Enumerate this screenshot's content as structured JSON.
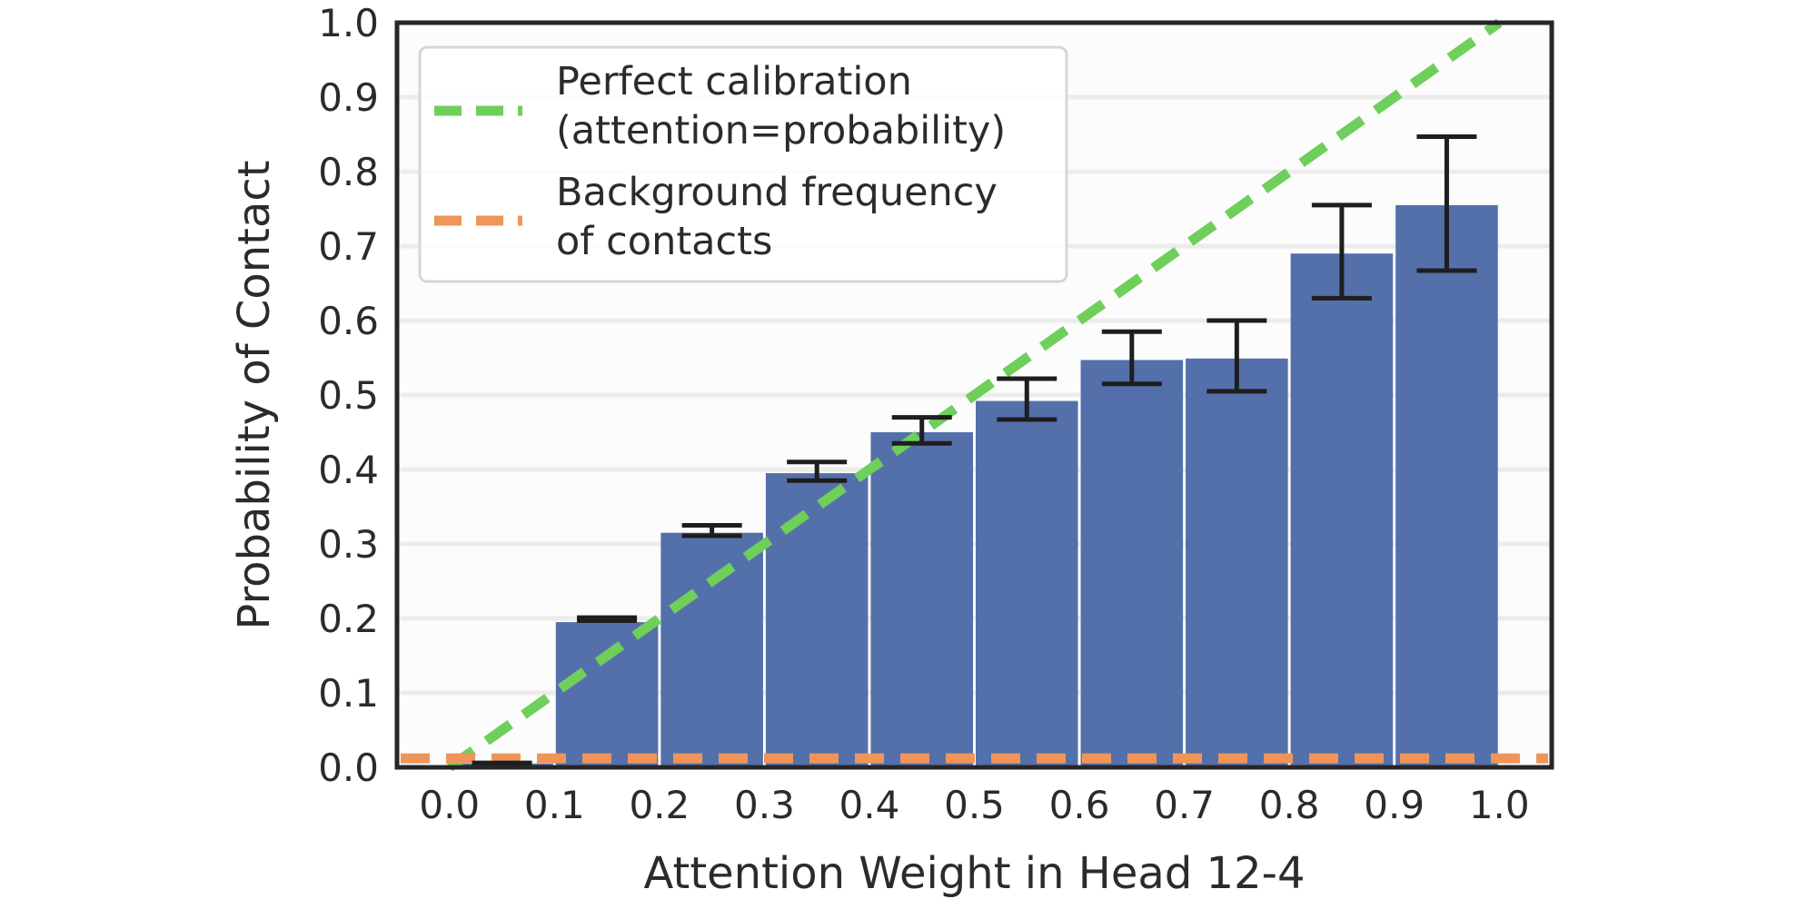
{
  "chart_data": {
    "type": "bar",
    "title": "",
    "xlabel": "Attention Weight in Head 12-4",
    "ylabel": "Probability of Contact",
    "xlim": [
      -0.05,
      1.05
    ],
    "ylim": [
      0.0,
      1.0
    ],
    "x_ticks": [
      "0.0",
      "0.1",
      "0.2",
      "0.3",
      "0.4",
      "0.5",
      "0.6",
      "0.7",
      "0.8",
      "0.9",
      "1.0"
    ],
    "y_ticks": [
      "0.0",
      "0.1",
      "0.2",
      "0.3",
      "0.4",
      "0.5",
      "0.6",
      "0.7",
      "0.8",
      "0.9",
      "1.0"
    ],
    "grid": "horizontal",
    "bin_width": 0.1,
    "bins": [
      {
        "x_start": 0.0,
        "value": 0.005,
        "err_low": 0.003,
        "err_high": 0.006
      },
      {
        "x_start": 0.1,
        "value": 0.195,
        "err_low": 0.197,
        "err_high": 0.201
      },
      {
        "x_start": 0.2,
        "value": 0.315,
        "err_low": 0.311,
        "err_high": 0.325
      },
      {
        "x_start": 0.3,
        "value": 0.395,
        "err_low": 0.385,
        "err_high": 0.41
      },
      {
        "x_start": 0.4,
        "value": 0.45,
        "err_low": 0.435,
        "err_high": 0.47
      },
      {
        "x_start": 0.5,
        "value": 0.492,
        "err_low": 0.467,
        "err_high": 0.522
      },
      {
        "x_start": 0.6,
        "value": 0.547,
        "err_low": 0.515,
        "err_high": 0.585
      },
      {
        "x_start": 0.7,
        "value": 0.549,
        "err_low": 0.505,
        "err_high": 0.6
      },
      {
        "x_start": 0.8,
        "value": 0.69,
        "err_low": 0.63,
        "err_high": 0.755
      },
      {
        "x_start": 0.9,
        "value": 0.755,
        "err_low": 0.667,
        "err_high": 0.847
      }
    ],
    "reference_lines": [
      {
        "name": "perfect-calibration",
        "x": [
          0.0,
          1.0
        ],
        "y": [
          0.0,
          1.0
        ]
      },
      {
        "name": "background-frequency",
        "y_value": 0.012
      }
    ],
    "legend": {
      "placement": "top-left",
      "entries": [
        {
          "lines": [
            "Perfect calibration",
            "(attention=probability)"
          ],
          "color": "#6fcf5b"
        },
        {
          "lines": [
            "Background frequency",
            "of contacts"
          ],
          "color": "#f0955a"
        }
      ]
    },
    "colors": {
      "bar": "#5470ab",
      "error_bar": "#1e1e1e",
      "calibration": "#6fcf5b",
      "background": "#f0955a",
      "grid": "#ececec",
      "plot_bg": "#fcfcfc",
      "axes": "#262626"
    }
  }
}
